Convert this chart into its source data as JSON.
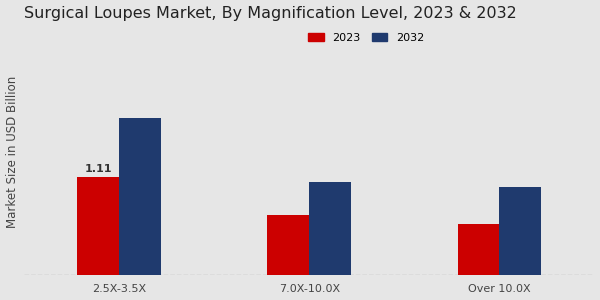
{
  "title": "Surgical Loupes Market, By Magnification Level, 2023 & 2032",
  "ylabel": "Market Size in USD Billion",
  "categories": [
    "2.5X-3.5X",
    "7.0X-10.0X",
    "Over 10.0X"
  ],
  "values_2023": [
    1.11,
    0.68,
    0.58
  ],
  "values_2032": [
    1.78,
    1.05,
    1.0
  ],
  "color_2023": "#cc0000",
  "color_2032": "#1f3a6e",
  "bar_width": 0.22,
  "annotation_value": "1.11",
  "legend_labels": [
    "2023",
    "2032"
  ],
  "background_color": "#e6e6e6",
  "title_fontsize": 11.5,
  "axis_fontsize": 8.5,
  "tick_fontsize": 8.0,
  "ylim_max": 2.8
}
